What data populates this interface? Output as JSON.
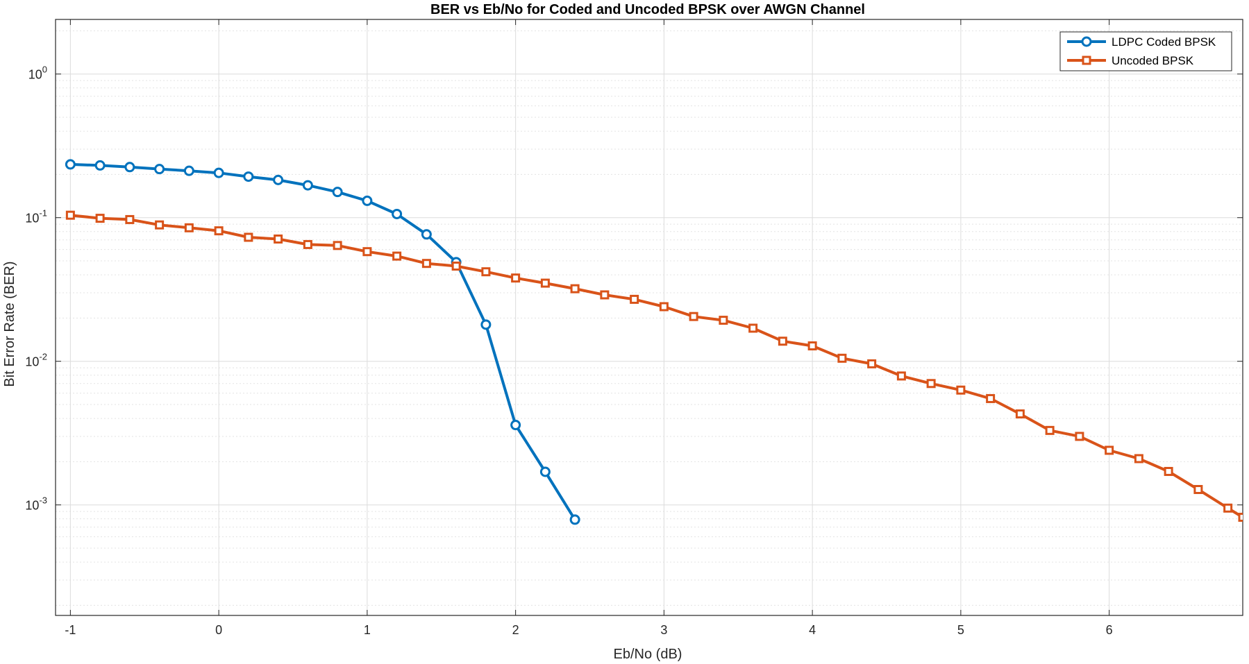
{
  "chart_data": {
    "type": "line",
    "title": "BER vs Eb/No for Coded and Uncoded BPSK over AWGN Channel",
    "xlabel": "Eb/No (dB)",
    "ylabel": "Bit Error Rate (BER)",
    "xlim": [
      -1.1,
      6.9
    ],
    "ylim": [
      0.00017,
      2.4
    ],
    "yscale": "log",
    "grid": true,
    "minor_grid": true,
    "legend_position": "top-right",
    "xticks": [
      -1,
      0,
      1,
      2,
      3,
      4,
      5,
      6
    ],
    "xtick_labels": [
      "-1",
      "0",
      "1",
      "2",
      "3",
      "4",
      "5",
      "6"
    ],
    "yticks": [
      {
        "value": 1,
        "base": "10",
        "exp": "0"
      },
      {
        "value": 0.1,
        "base": "10",
        "exp": "-1"
      },
      {
        "value": 0.01,
        "base": "10",
        "exp": "-2"
      },
      {
        "value": 0.001,
        "base": "10",
        "exp": "-3"
      }
    ],
    "series": [
      {
        "name": "LDPC Coded BPSK",
        "color": "#0072BD",
        "marker": "circle",
        "x": [
          -1,
          -0.8,
          -0.6,
          -0.4,
          -0.2,
          0,
          0.2,
          0.4,
          0.6,
          0.8,
          1.0,
          1.2,
          1.4,
          1.6,
          1.8,
          2.0,
          2.2,
          2.4
        ],
        "y": [
          0.235,
          0.231,
          0.225,
          0.218,
          0.212,
          0.205,
          0.193,
          0.183,
          0.168,
          0.151,
          0.131,
          0.106,
          0.0765,
          0.049,
          0.018,
          0.0036,
          0.0017,
          0.00079
        ]
      },
      {
        "name": "Uncoded BPSK",
        "color": "#D95319",
        "marker": "square",
        "x": [
          -1,
          -0.8,
          -0.6,
          -0.4,
          -0.2,
          0,
          0.2,
          0.4,
          0.6,
          0.8,
          1.0,
          1.2,
          1.4,
          1.6,
          1.8,
          2.0,
          2.2,
          2.4,
          2.6,
          2.8,
          3.0,
          3.2,
          3.4,
          3.6,
          3.8,
          4.0,
          4.2,
          4.4,
          4.6,
          4.8,
          5.0,
          5.2,
          5.4,
          5.6,
          5.8,
          6.0,
          6.2,
          6.4,
          6.6,
          6.8,
          6.9
        ],
        "y": [
          0.104,
          0.099,
          0.097,
          0.089,
          0.085,
          0.081,
          0.073,
          0.071,
          0.065,
          0.064,
          0.058,
          0.054,
          0.048,
          0.046,
          0.042,
          0.038,
          0.035,
          0.032,
          0.029,
          0.027,
          0.024,
          0.0205,
          0.0193,
          0.017,
          0.0138,
          0.0128,
          0.0105,
          0.0096,
          0.0079,
          0.007,
          0.0063,
          0.0055,
          0.0043,
          0.0033,
          0.003,
          0.0024,
          0.0021,
          0.00171,
          0.00128,
          0.00095,
          0.00082
        ]
      }
    ]
  }
}
